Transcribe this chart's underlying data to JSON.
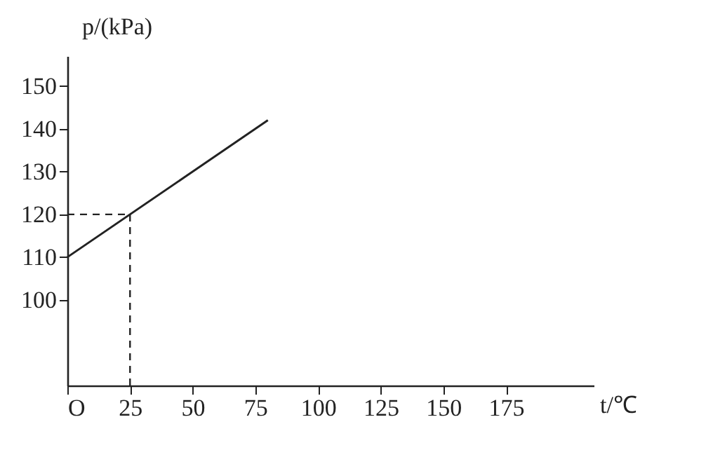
{
  "chart_data": {
    "type": "line",
    "xlabel": "t/℃",
    "ylabel": "p/(kPa)",
    "x": [
      0,
      80
    ],
    "series": [
      {
        "color": "#222222",
        "values": [
          110,
          142
        ]
      }
    ],
    "xlim": [
      0,
      210
    ],
    "ylim": [
      80,
      157
    ],
    "xticks": [
      {
        "value": 0,
        "label": "O"
      },
      25,
      50,
      75,
      100,
      125,
      150,
      175
    ],
    "yticks": [
      100,
      110,
      120,
      130,
      140,
      150
    ],
    "ref_lines": [
      {
        "axis": "x",
        "value": 25,
        "line_style": "dashed",
        "color": "#222222"
      },
      {
        "axis": "y",
        "value": 120,
        "line_style": "dashed",
        "color": "#222222"
      }
    ],
    "grid": false,
    "marker": "none",
    "line_style": "solid"
  }
}
